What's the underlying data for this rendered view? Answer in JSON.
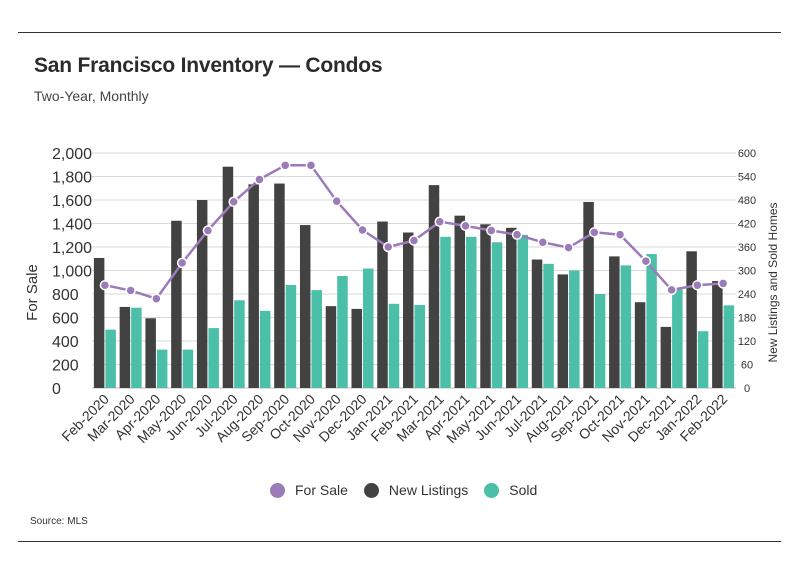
{
  "title": "San Francisco Inventory — Condos",
  "subtitle": "Two-Year, Monthly",
  "source": "Source:  MLS",
  "colors": {
    "for_sale": "#9b7bb8",
    "new_listings": "#424242",
    "sold": "#4bbfa8",
    "grid": "#d9d9d9"
  },
  "legend": [
    {
      "key": "for_sale",
      "label": "For Sale",
      "color": "#9b7bb8"
    },
    {
      "key": "new_listings",
      "label": "New Listings",
      "color": "#424242"
    },
    {
      "key": "sold",
      "label": "Sold",
      "color": "#4bbfa8"
    }
  ],
  "chart_data": {
    "type": "bar",
    "categories": [
      "Feb-2020",
      "Mar-2020",
      "Apr-2020",
      "May-2020",
      "Jun-2020",
      "Jul-2020",
      "Aug-2020",
      "Sep-2020",
      "Oct-2020",
      "Nov-2020",
      "Dec-2020",
      "Jan-2021",
      "Feb-2021",
      "Mar-2021",
      "Apr-2021",
      "May-2021",
      "Jun-2021",
      "Jul-2021",
      "Aug-2021",
      "Sep-2021",
      "Oct-2021",
      "Nov-2021",
      "Dec-2021",
      "Jan-2022",
      "Feb-2022"
    ],
    "ylabel": "For Sale",
    "y2label": "New Listings and Sold Homes",
    "ylim": [
      0,
      2000
    ],
    "y2lim": [
      0,
      600
    ],
    "yticks": [
      "0",
      "200",
      "400",
      "600",
      "800",
      "1,000",
      "1,200",
      "1,400",
      "1,600",
      "1,800",
      "2,000"
    ],
    "y2ticks": [
      "0",
      "60",
      "120",
      "180",
      "240",
      "300",
      "360",
      "420",
      "480",
      "540",
      "600"
    ],
    "grid": true,
    "legend_position": "bottom",
    "series": [
      {
        "name": "New Listings",
        "type": "bar",
        "axis": "right",
        "values": [
          332,
          207,
          178,
          427,
          480,
          565,
          520,
          522,
          416,
          209,
          202,
          425,
          397,
          518,
          440,
          418,
          409,
          328,
          290,
          475,
          336,
          219,
          156,
          349,
          273
        ]
      },
      {
        "name": "Sold",
        "type": "bar",
        "axis": "right",
        "values": [
          149,
          205,
          98,
          98,
          153,
          224,
          197,
          263,
          250,
          286,
          305,
          215,
          212,
          386,
          386,
          372,
          391,
          317,
          300,
          240,
          313,
          342,
          253,
          145,
          211
        ]
      },
      {
        "name": "For Sale",
        "type": "line",
        "axis": "left",
        "values": [
          875,
          830,
          760,
          1065,
          1340,
          1585,
          1775,
          1895,
          1895,
          1590,
          1345,
          1200,
          1255,
          1415,
          1380,
          1340,
          1305,
          1240,
          1195,
          1325,
          1305,
          1080,
          835,
          875,
          890
        ]
      }
    ]
  }
}
